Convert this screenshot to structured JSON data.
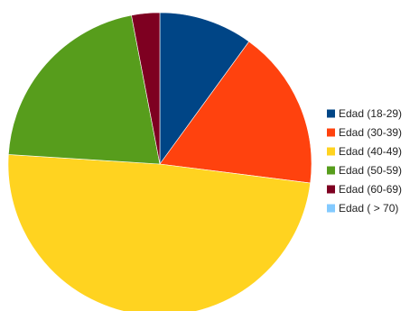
{
  "chart_data": {
    "type": "pie",
    "title": "",
    "legend_position": "right",
    "start_angle_deg": 0,
    "direction": "clockwise",
    "slices": [
      {
        "label": "Edad (18-29)",
        "value": 10.0,
        "color": "#004586"
      },
      {
        "label": "Edad (30-39)",
        "value": 17.0,
        "color": "#ff420e"
      },
      {
        "label": "Edad (40-49)",
        "value": 49.0,
        "color": "#ffd320"
      },
      {
        "label": "Edad (50-59)",
        "value": 21.0,
        "color": "#579d1c"
      },
      {
        "label": "Edad (60-69)",
        "value": 3.0,
        "color": "#7e0021"
      },
      {
        "label": "Edad ( > 70)",
        "value": 0.0,
        "color": "#83caff"
      }
    ]
  }
}
